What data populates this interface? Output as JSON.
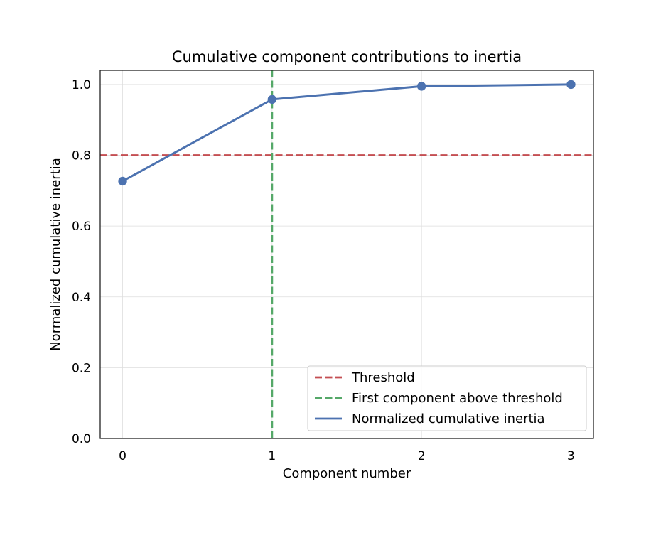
{
  "chart_data": {
    "type": "line",
    "title": "Cumulative component contributions to inertia",
    "xlabel": "Component number",
    "ylabel": "Normalized cumulative inertia",
    "x": [
      0,
      1,
      2,
      3
    ],
    "xticks": [
      "0",
      "1",
      "2",
      "3"
    ],
    "xlim": [
      -0.15,
      3.15
    ],
    "yticks": [
      "0.0",
      "0.2",
      "0.4",
      "0.6",
      "0.8",
      "1.0"
    ],
    "ylim": [
      0.0,
      1.04
    ],
    "grid": true,
    "series": [
      {
        "name": "Normalized cumulative inertia",
        "values": [
          0.727,
          0.958,
          0.995,
          1.0
        ],
        "color": "#4c72b0"
      }
    ],
    "reference_lines": [
      {
        "name": "Threshold",
        "orientation": "horizontal",
        "value": 0.8,
        "color": "#c44e52"
      },
      {
        "name": "First component above threshold",
        "orientation": "vertical",
        "value": 1,
        "color": "#55a868"
      }
    ],
    "legend": {
      "placement": "lower-right",
      "entries": [
        "Threshold",
        "First component above threshold",
        "Normalized cumulative inertia"
      ]
    }
  }
}
